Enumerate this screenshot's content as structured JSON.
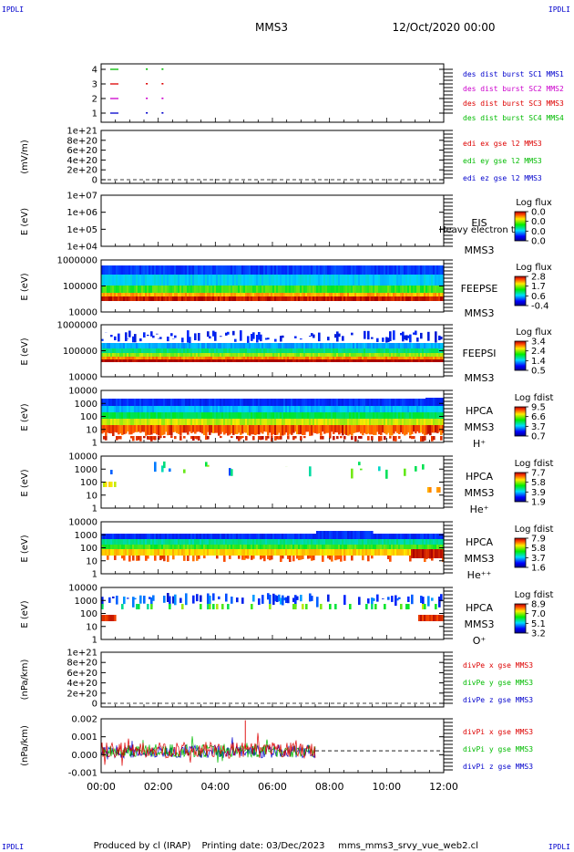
{
  "corner_mark": "IPDLI",
  "header": {
    "spacecraft": "MMS3",
    "date_time": "12/Oct/2020 00:00"
  },
  "footer": {
    "producer": "Produced by cl (IRAP)",
    "printing": "Printing date: 03/Dec/2023",
    "filename": "mms_mms3_srvy_vue_web2.cl"
  },
  "colors": {
    "red": "#dd0000",
    "green": "#00bb00",
    "blue": "#0000cc",
    "magenta": "#cc00cc",
    "mms1": "#00bb00",
    "mms2": "#cc00cc",
    "mms3": "#dd0000",
    "mms4": "#0000cc"
  },
  "chart_data": [
    {
      "id": "p1",
      "type": "scatter",
      "ylabel": "",
      "yticks": [
        "4",
        "3",
        "2",
        "1"
      ],
      "legend": [
        "des dist burst SC1 MMS1",
        "des dist burst SC2 MMS2",
        "des dist burst SC3 MMS3",
        "des dist burst SC4 MMS4"
      ],
      "marks_hours": [
        0.3,
        1.6,
        2.15
      ]
    },
    {
      "id": "p2",
      "type": "line",
      "ylabel": "(mV/m)",
      "yticks": [
        "1e+21",
        "8e+20",
        "6e+20",
        "4e+20",
        "2e+20",
        "0"
      ],
      "legend": [
        "edi ex gse l2 MMS3",
        "edi ey gse l2 MMS3",
        "edi ez gse l2 MMS3"
      ]
    },
    {
      "id": "p3",
      "type": "heatmap",
      "ylabel": "E (eV)",
      "yticks": [
        "1e+07",
        "1e+06",
        "1e+05",
        "1e+04"
      ],
      "label": [
        "EIS",
        "MMS3"
      ],
      "overlay": "Heavy electron to",
      "cbar_title": "Log flux",
      "cbar_ticks": [
        "0.0",
        "0.0",
        "0.0",
        "0.0"
      ]
    },
    {
      "id": "p4",
      "type": "heatmap",
      "ylabel": "E (eV)",
      "yticks": [
        "1000000",
        "100000",
        "10000"
      ],
      "label": [
        "FEEPSE",
        "MMS3"
      ],
      "cbar_title": "Log flux",
      "cbar_ticks": [
        "2.8",
        "1.7",
        "0.6",
        "-0.4"
      ]
    },
    {
      "id": "p5",
      "type": "heatmap",
      "ylabel": "E (eV)",
      "yticks": [
        "1000000",
        "100000",
        "10000"
      ],
      "label": [
        "FEEPSI",
        "MMS3"
      ],
      "cbar_title": "Log flux",
      "cbar_ticks": [
        "3.4",
        "2.4",
        "1.4",
        "0.5"
      ]
    },
    {
      "id": "p6",
      "type": "heatmap",
      "ylabel": "E (eV)",
      "yticks": [
        "10000",
        "1000",
        "100",
        "10",
        "1"
      ],
      "label": [
        "HPCA",
        "MMS3",
        "H⁺"
      ],
      "cbar_title": "Log fdist",
      "cbar_ticks": [
        "9.5",
        "6.6",
        "3.7",
        "0.7"
      ]
    },
    {
      "id": "p7",
      "type": "heatmap",
      "ylabel": "E (eV)",
      "yticks": [
        "10000",
        "1000",
        "100",
        "10",
        "1"
      ],
      "label": [
        "HPCA",
        "MMS3",
        "He⁺"
      ],
      "cbar_title": "Log fdist",
      "cbar_ticks": [
        "7.7",
        "5.8",
        "3.9",
        "1.9"
      ]
    },
    {
      "id": "p8",
      "type": "heatmap",
      "ylabel": "E (eV)",
      "yticks": [
        "10000",
        "1000",
        "100",
        "10",
        "1"
      ],
      "label": [
        "HPCA",
        "MMS3",
        "He⁺⁺"
      ],
      "cbar_title": "Log fdist",
      "cbar_ticks": [
        "7.9",
        "5.8",
        "3.7",
        "1.6"
      ]
    },
    {
      "id": "p9",
      "type": "heatmap",
      "ylabel": "E (eV)",
      "yticks": [
        "10000",
        "1000",
        "100",
        "10",
        "1"
      ],
      "label": [
        "HPCA",
        "MMS3",
        "O⁺"
      ],
      "cbar_title": "Log fdist",
      "cbar_ticks": [
        "8.9",
        "7.0",
        "5.1",
        "3.2"
      ]
    },
    {
      "id": "p10",
      "type": "line",
      "ylabel": "(nPa/km)",
      "yticks": [
        "1e+21",
        "8e+20",
        "6e+20",
        "4e+20",
        "2e+20",
        "0"
      ],
      "legend": [
        "divPe x gse MMS3",
        "divPe y gse MMS3",
        "divPe z gse MMS3"
      ]
    },
    {
      "id": "p11",
      "type": "line",
      "ylabel": "(nPa/km)",
      "yticks": [
        "0.002",
        "0.001",
        "0.000",
        "-0.001"
      ],
      "ylim": [
        -0.0015,
        0.0022
      ],
      "data_end_hour": 7.5,
      "legend": [
        "divPi x gse MMS3",
        "divPi y gse MMS3",
        "divPi z gse MMS3"
      ]
    }
  ],
  "xaxis": {
    "ticks": [
      "00:00",
      "02:00",
      "04:00",
      "06:00",
      "08:00",
      "10:00",
      "12:00"
    ],
    "range_hours": [
      0,
      12
    ]
  }
}
